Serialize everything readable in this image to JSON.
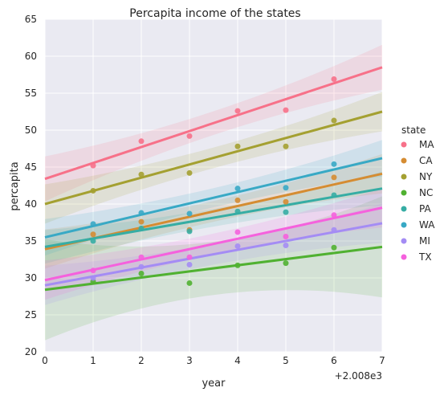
{
  "chart_data": {
    "type": "scatter",
    "title": "Percapita income of the states",
    "xlabel": "year",
    "ylabel": "percapita",
    "offset_label": "+2.008e3",
    "xlim": [
      0,
      7
    ],
    "ylim": [
      20,
      65
    ],
    "xticks": [
      "0",
      "1",
      "2",
      "3",
      "4",
      "5",
      "6",
      "7"
    ],
    "yticks": [
      "20",
      "25",
      "30",
      "35",
      "40",
      "45",
      "50",
      "55",
      "60",
      "65"
    ],
    "grid": true,
    "legend_title": "state",
    "legend_position": "right",
    "x": [
      1,
      2,
      3,
      4,
      5,
      6
    ],
    "series": [
      {
        "name": "MA",
        "color": "#f77189",
        "values": [
          45.2,
          48.5,
          49.2,
          52.6,
          52.7,
          56.9
        ],
        "fit": [
          43.4,
          58.5
        ],
        "band": 1.6
      },
      {
        "name": "CA",
        "color": "#d58c32",
        "values": [
          35.9,
          37.6,
          36.5,
          40.5,
          40.3,
          43.6
        ],
        "fit": [
          33.9,
          44.1
        ],
        "band": 1.4
      },
      {
        "name": "NY",
        "color": "#a4a031",
        "values": [
          41.8,
          44.0,
          44.2,
          47.8,
          47.8,
          51.3
        ],
        "fit": [
          40.0,
          52.5
        ],
        "band": 1.4
      },
      {
        "name": "NC",
        "color": "#50b131",
        "values": [
          29.5,
          30.6,
          29.3,
          31.7,
          32.0,
          34.1
        ],
        "fit": [
          28.4,
          34.2
        ],
        "band": 3.6
      },
      {
        "name": "PA",
        "color": "#36ada4",
        "values": [
          35.0,
          36.7,
          36.3,
          39.0,
          38.9,
          41.2
        ],
        "fit": [
          34.2,
          42.1
        ],
        "band": 1.2
      },
      {
        "name": "WA",
        "color": "#38a9c5",
        "values": [
          37.3,
          38.8,
          38.7,
          42.1,
          42.2,
          45.4
        ],
        "fit": [
          35.5,
          46.2
        ],
        "band": 1.3
      },
      {
        "name": "MI",
        "color": "#a48cf4",
        "values": [
          30.0,
          31.5,
          31.8,
          34.3,
          34.4,
          36.5
        ],
        "fit": [
          29.0,
          37.4
        ],
        "band": 1.4
      },
      {
        "name": "TX",
        "color": "#f561dd",
        "values": [
          31.0,
          32.8,
          32.8,
          36.2,
          35.6,
          38.5
        ],
        "fit": [
          29.7,
          39.5
        ],
        "band": 1.4
      }
    ]
  }
}
